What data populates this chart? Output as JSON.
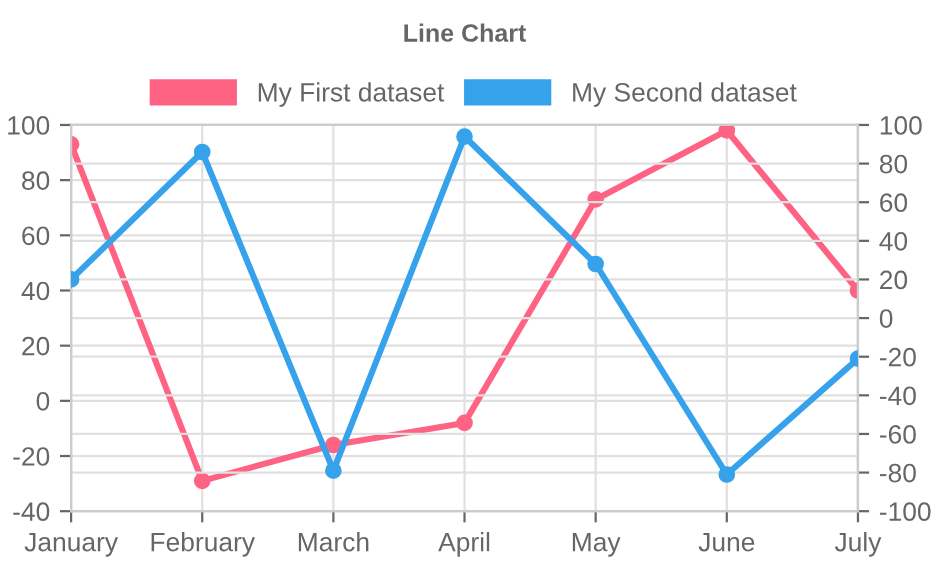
{
  "chart_data": {
    "type": "line",
    "title": "Line Chart",
    "categories": [
      "January",
      "February",
      "March",
      "April",
      "May",
      "June",
      "July"
    ],
    "series": [
      {
        "name": "My First dataset",
        "color": "#ff6384",
        "values": [
          93,
          -29,
          -16,
          -8,
          73,
          98,
          40
        ]
      },
      {
        "name": "My Second dataset",
        "color": "#36a2eb",
        "axis": "y2",
        "values": [
          20,
          86,
          -79,
          94,
          28,
          -81,
          -21
        ]
      }
    ],
    "ylim": [
      -40,
      100
    ],
    "yticks": [
      -40,
      -20,
      0,
      20,
      40,
      60,
      80,
      100
    ],
    "y2lim": [
      -100,
      100
    ],
    "y2ticks": [
      -100,
      -80,
      -60,
      -40,
      -20,
      0,
      20,
      40,
      60,
      80,
      100
    ],
    "grid": true,
    "legend": "top",
    "marker": "circle",
    "line_style": "solid"
  }
}
